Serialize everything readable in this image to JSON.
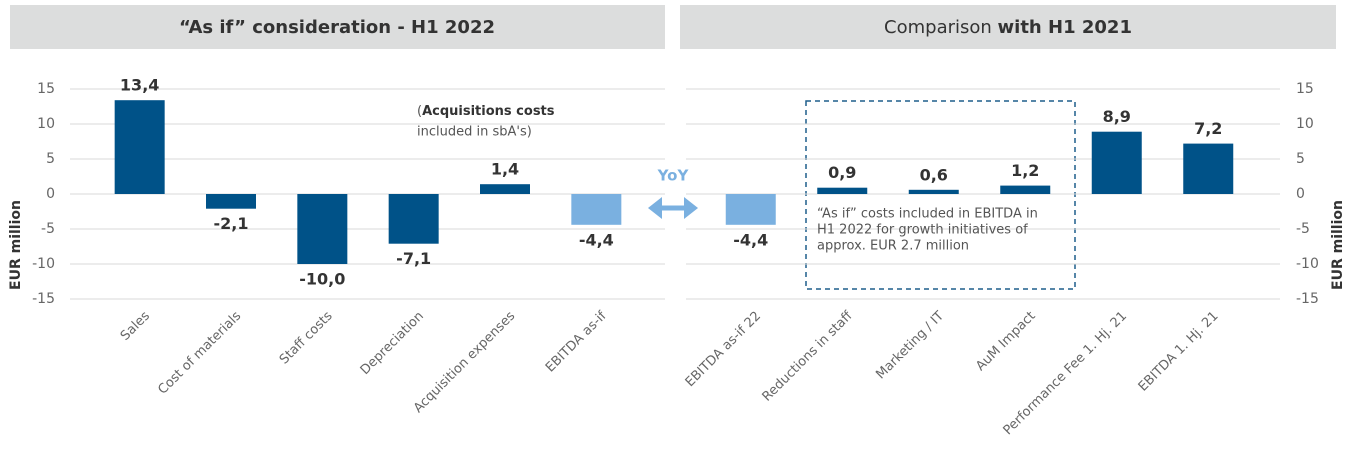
{
  "chart_data": [
    {
      "type": "bar",
      "title_parts": [
        "“As if” consideration - H1 2022"
      ],
      "categories": [
        "Sales",
        "Cost of materials",
        "Staff costs",
        "Depreciation",
        "Acquisition expenses",
        "EBITDA as-if"
      ],
      "values": [
        13.4,
        -2.1,
        -10.0,
        -7.1,
        1.4,
        -4.4
      ],
      "value_labels": [
        "13,4",
        "-2,1",
        "-10,0",
        "-7,1",
        "1,4",
        "-4,4"
      ],
      "colors": [
        "#005288",
        "#005288",
        "#005288",
        "#005288",
        "#005288",
        "#7ab0e0"
      ],
      "y_label": "EUR million",
      "ylim": [
        -15,
        15
      ],
      "yticks": [
        -15,
        -10,
        -5,
        0,
        5,
        10,
        15
      ],
      "grid": true,
      "y_axis_side": "left",
      "annotation_parts": [
        "(",
        "Acquisitions costs",
        "included in sbA's)"
      ]
    },
    {
      "type": "bar",
      "title_parts": [
        "Comparison ",
        "with H1 2021"
      ],
      "categories": [
        "EBITDA as-if 22",
        "Reductions in staff",
        "Marketing / IT",
        "AuM Impact",
        "Performance Fee 1. Hj. 21",
        "EBITDA 1. Hj. 21"
      ],
      "values": [
        -4.4,
        0.9,
        0.6,
        1.2,
        8.9,
        7.2
      ],
      "value_labels": [
        "-4,4",
        "0,9",
        "0,6",
        "1,2",
        "8,9",
        "7,2"
      ],
      "colors": [
        "#7ab0e0",
        "#005288",
        "#005288",
        "#005288",
        "#005288",
        "#005288"
      ],
      "y_label": "EUR million",
      "ylim": [
        -15,
        15
      ],
      "yticks": [
        -15,
        -10,
        -5,
        0,
        5,
        10,
        15
      ],
      "grid": true,
      "y_axis_side": "right",
      "annotation_lines": [
        "“As if” costs included in EBITDA in",
        "H1 2022 for growth initiatives of",
        "approx. EUR 2.7 million"
      ]
    }
  ],
  "yoy_label": "YoY"
}
